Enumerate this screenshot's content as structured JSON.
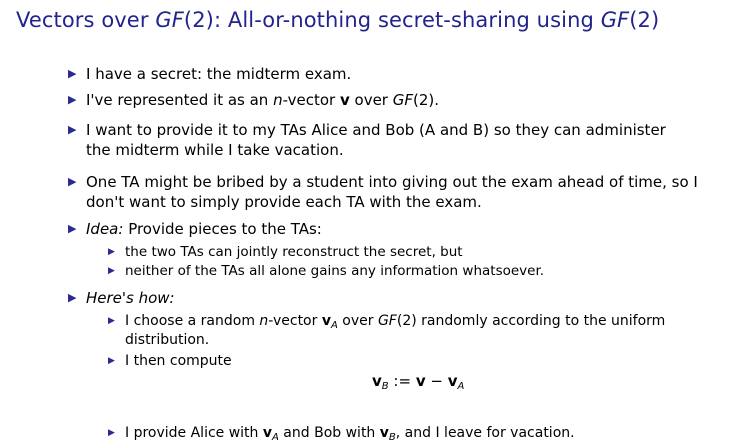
{
  "title": {
    "prefix": "Vectors over ",
    "gf": "GF",
    "mid": "(2): All-or-nothing secret-sharing using ",
    "gf2": "GF",
    "suffix": "(2)"
  },
  "bullets": {
    "b1": "I have a secret: the midterm exam.",
    "b2": {
      "a": "I've represented it as an ",
      "n": "n",
      "b": "-vector ",
      "v": "v",
      "c": " over ",
      "gf": "GF",
      "d": "(2)."
    },
    "b3_line1": "I want to provide it to my TAs Alice and Bob (A and B) so they can administer",
    "b3_line2": "the midterm while I take vacation.",
    "b4_line1": "One TA might be bribed by a student into giving out the exam ahead of time, so I",
    "b4_line2": "don't want to simply provide each TA with the exam.",
    "b5": {
      "idea": "Idea:",
      "rest": " Provide pieces to the TAs:",
      "sub1": "the two TAs can jointly reconstruct the secret, but",
      "sub2": "neither of the TAs all alone gains any information whatsoever."
    },
    "b6": {
      "head": "Here's how:",
      "s1_a": "I choose a random ",
      "s1_n": "n",
      "s1_b": "-vector ",
      "s1_v": "v",
      "s1_vsub": "A",
      "s1_c": " over ",
      "s1_gf": "GF",
      "s1_d": "(2) randomly according to the uniform",
      "s1_line2": "distribution.",
      "s2": "I then compute",
      "formula": {
        "lhs_v": "v",
        "lhs_sub": "B",
        "assign": " := ",
        "v": "v",
        "minus": " − ",
        "rhs_v": "v",
        "rhs_sub": "A"
      },
      "s3_a": "I provide Alice with ",
      "s3_v1": "v",
      "s3_sub1": "A",
      "s3_b": " and Bob with ",
      "s3_v2": "v",
      "s3_sub2": "B",
      "s3_c": ", and I leave for vacation."
    }
  },
  "icons": {
    "bullet": "▶"
  },
  "colors": {
    "title": "#23238e",
    "marker": "#2a2a90"
  }
}
